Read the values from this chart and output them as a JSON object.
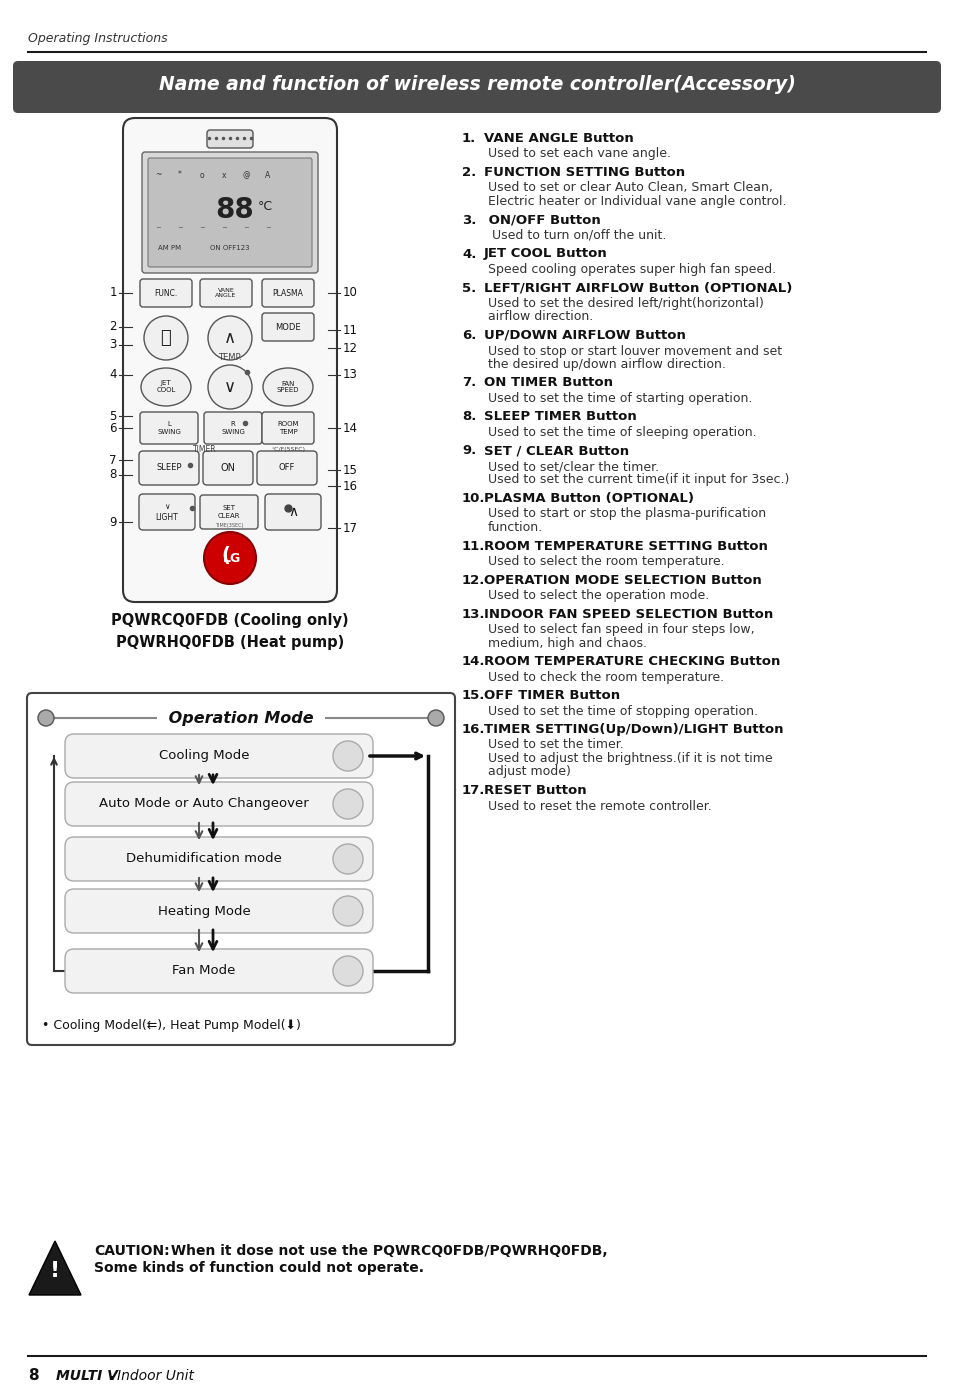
{
  "page_title": "Operating Instructions",
  "section_title": "Name and function of wireless remote controller(Accessory)",
  "model_text1": "PQWRCQ0FDB (Cooling only)",
  "model_text2": "PQWRHQ0FDB (Heat pump)",
  "op_mode_title": "Operation Mode",
  "op_mode_items": [
    "Cooling Mode",
    "Auto Mode or Auto Changeover",
    "Dehumidification mode",
    "Heating Mode",
    "Fan Mode"
  ],
  "op_mode_note": "• Cooling Model(⇇), Heat Pump Model(⬇)",
  "right_items": [
    {
      "num": "1.",
      "bold": "VANE ANGLE Button",
      "text": "Used to set each vane angle."
    },
    {
      "num": "2.",
      "bold": "FUNCTION SETTING Button",
      "text": "Used to set or clear Auto Clean, Smart Clean,\nElectric heater or Individual vane angle control."
    },
    {
      "num": "3.",
      "bold": " ON/OFF Button",
      "text": " Used to turn on/off the unit."
    },
    {
      "num": "4.",
      "bold": "JET COOL Button",
      "text": "Speed cooling operates super high fan speed."
    },
    {
      "num": "5.",
      "bold": "LEFT/RIGHT AIRFLOW Button (OPTIONAL)",
      "text": "Used to set the desired left/right(horizontal)\nairflow direction."
    },
    {
      "num": "6.",
      "bold": "UP/DOWN AIRFLOW Button",
      "text": "Used to stop or start louver movement and set\nthe desired up/down airflow direction."
    },
    {
      "num": "7.",
      "bold": "ON TIMER Button",
      "text": "Used to set the time of starting operation."
    },
    {
      "num": "8.",
      "bold": "SLEEP TIMER Button",
      "text": "Used to set the time of sleeping operation."
    },
    {
      "num": "9.",
      "bold": "SET / CLEAR Button",
      "text": "Used to set/clear the timer.\nUsed to set the current time(if it input for 3sec.)"
    },
    {
      "num": "10.",
      "bold": "PLASMA Button (OPTIONAL)",
      "text": "Used to start or stop the plasma-purification\nfunction."
    },
    {
      "num": "11.",
      "bold": "ROOM TEMPERATURE SETTING Button",
      "text": "Used to select the room temperature."
    },
    {
      "num": "12.",
      "bold": "OPERATION MODE SELECTION Button",
      "text": "Used to select the operation mode."
    },
    {
      "num": "13.",
      "bold": "INDOOR FAN SPEED SELECTION Button",
      "text": "Used to select fan speed in four steps low,\nmedium, high and chaos."
    },
    {
      "num": "14.",
      "bold": "ROOM TEMPERATURE CHECKING Button",
      "text": "Used to check the room temperature."
    },
    {
      "num": "15.",
      "bold": "OFF TIMER Button",
      "text": "Used to set the time of stopping operation."
    },
    {
      "num": "16.",
      "bold": "TIMER SETTING(Up/Down)/LIGHT Button",
      "text": "Used to set the timer.\nUsed to adjust the brightness.(if it is not time\nadjust mode)"
    },
    {
      "num": "17.",
      "bold": "RESET Button",
      "text": "Used to reset the remote controller."
    }
  ],
  "caution_bold": "CAUTION:",
  "caution_text1": " When it dose not use the PQWRCQ0FDB/PQWRHQ0FDB,",
  "caution_text2": "Some kinds of function could not operate.",
  "footer_page": "8",
  "footer_brand": "MULTI V",
  "footer_text": "Indoor Unit",
  "bg_color": "#ffffff"
}
